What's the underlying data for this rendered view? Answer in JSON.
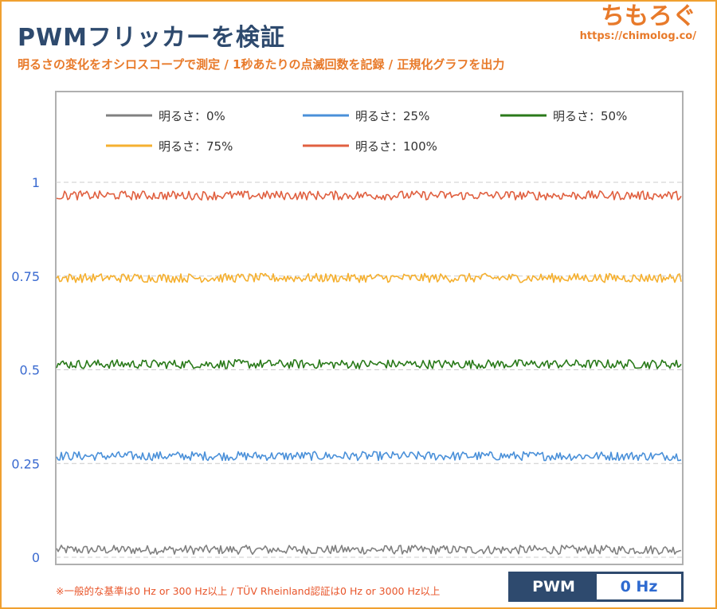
{
  "header": {
    "title": "PWMフリッカーを検証",
    "subtitle": "明るさの変化をオシロスコープで測定 / 1秒あたりの点滅回数を記録 / 正規化グラフを出力"
  },
  "brand": {
    "name": "ちもろぐ",
    "url": "https://chimolog.co/",
    "color": "#e87a2a"
  },
  "chart_data": {
    "type": "line",
    "ylim": [
      0,
      1.0
    ],
    "yticks": [
      0,
      0.25,
      0.5,
      0.75,
      1
    ],
    "ytick_labels": [
      "0",
      "0.25",
      "0.5",
      "0.75",
      "1"
    ],
    "grid": "dashed horizontal",
    "legend_placement": "top",
    "series": [
      {
        "name": "明るさ：0%",
        "level": 0.02,
        "noise": 0.012,
        "color": "#808080"
      },
      {
        "name": "明るさ：25%",
        "level": 0.27,
        "noise": 0.012,
        "color": "#4a90d9"
      },
      {
        "name": "明るさ：50%",
        "level": 0.515,
        "noise": 0.012,
        "color": "#2a7a1a"
      },
      {
        "name": "明るさ：75%",
        "level": 0.745,
        "noise": 0.012,
        "color": "#f5b030"
      },
      {
        "name": "明るさ：100%",
        "level": 0.965,
        "noise": 0.012,
        "color": "#e06040"
      }
    ]
  },
  "footer": {
    "note": "※一般的な基準は0 Hz or 300 Hz以上 / TÜV Rheinland認証は0 Hz or 3000 Hz以上",
    "pwm_label": "PWM",
    "pwm_value": "0 Hz"
  }
}
